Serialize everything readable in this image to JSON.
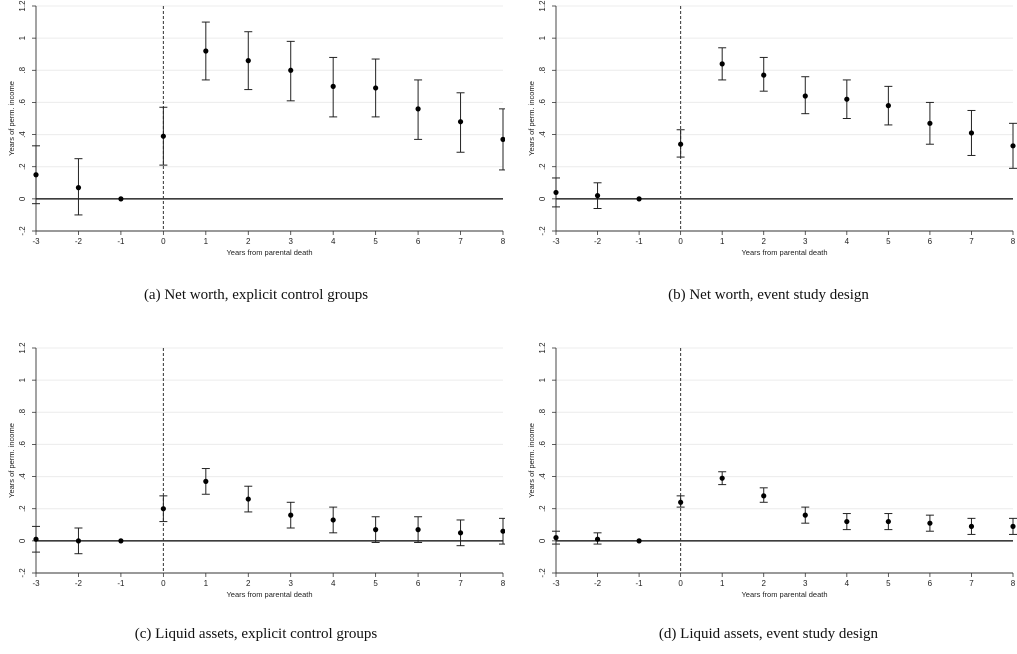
{
  "chart_data": [
    {
      "type": "scatter",
      "caption": "(a) Net worth, explicit control groups",
      "xlabel": "Years from parental death",
      "ylabel": "Years of perm. income",
      "xlim": [
        -3,
        8
      ],
      "ylim": [
        -0.2,
        1.2
      ],
      "xticks": [
        "-3",
        "-2",
        "-1",
        "0",
        "1",
        "2",
        "3",
        "4",
        "5",
        "6",
        "7",
        "8"
      ],
      "yticks": [
        "-.2",
        "0",
        ".2",
        ".4",
        ".6",
        ".8",
        "1",
        "1.2"
      ],
      "x": [
        -3,
        -2,
        -1,
        0,
        1,
        2,
        3,
        4,
        5,
        6,
        7,
        8
      ],
      "y": [
        0.15,
        0.07,
        0.0,
        0.39,
        0.92,
        0.86,
        0.8,
        0.7,
        0.69,
        0.56,
        0.48,
        0.37
      ],
      "ci_low": [
        -0.03,
        -0.1,
        0.0,
        0.21,
        0.74,
        0.68,
        0.61,
        0.51,
        0.51,
        0.37,
        0.29,
        0.18
      ],
      "ci_high": [
        0.33,
        0.25,
        0.0,
        0.57,
        1.1,
        1.04,
        0.98,
        0.88,
        0.87,
        0.74,
        0.66,
        0.56
      ],
      "event_line_x": 0,
      "grid": true
    },
    {
      "type": "scatter",
      "caption": "(b) Net worth, event study design",
      "xlabel": "Years from parental death",
      "ylabel": "Years of perm. income",
      "xlim": [
        -3,
        8
      ],
      "ylim": [
        -0.2,
        1.2
      ],
      "xticks": [
        "-3",
        "-2",
        "-1",
        "0",
        "1",
        "2",
        "3",
        "4",
        "5",
        "6",
        "7",
        "8"
      ],
      "yticks": [
        "-.2",
        "0",
        ".2",
        ".4",
        ".6",
        ".8",
        "1",
        "1.2"
      ],
      "x": [
        -3,
        -2,
        -1,
        0,
        1,
        2,
        3,
        4,
        5,
        6,
        7,
        8
      ],
      "y": [
        0.04,
        0.02,
        0.0,
        0.34,
        0.84,
        0.77,
        0.64,
        0.62,
        0.58,
        0.47,
        0.41,
        0.33
      ],
      "ci_low": [
        -0.05,
        -0.06,
        0.0,
        0.26,
        0.74,
        0.67,
        0.53,
        0.5,
        0.46,
        0.34,
        0.27,
        0.19
      ],
      "ci_high": [
        0.13,
        0.1,
        0.0,
        0.43,
        0.94,
        0.88,
        0.76,
        0.74,
        0.7,
        0.6,
        0.55,
        0.47
      ],
      "event_line_x": 0,
      "grid": true
    },
    {
      "type": "scatter",
      "caption": "(c) Liquid assets, explicit control groups",
      "xlabel": "Years from parental death",
      "ylabel": "Years of perm. income",
      "xlim": [
        -3,
        8
      ],
      "ylim": [
        -0.2,
        1.2
      ],
      "xticks": [
        "-3",
        "-2",
        "-1",
        "0",
        "1",
        "2",
        "3",
        "4",
        "5",
        "6",
        "7",
        "8"
      ],
      "yticks": [
        "-.2",
        "0",
        ".2",
        ".4",
        ".6",
        ".8",
        "1",
        "1.2"
      ],
      "x": [
        -3,
        -2,
        -1,
        0,
        1,
        2,
        3,
        4,
        5,
        6,
        7,
        8
      ],
      "y": [
        0.01,
        0.0,
        0.0,
        0.2,
        0.37,
        0.26,
        0.16,
        0.13,
        0.07,
        0.07,
        0.05,
        0.06
      ],
      "ci_low": [
        -0.07,
        -0.08,
        0.0,
        0.12,
        0.29,
        0.18,
        0.08,
        0.05,
        -0.01,
        -0.01,
        -0.03,
        -0.02
      ],
      "ci_high": [
        0.09,
        0.08,
        0.0,
        0.28,
        0.45,
        0.34,
        0.24,
        0.21,
        0.15,
        0.15,
        0.13,
        0.14
      ],
      "event_line_x": 0,
      "grid": true
    },
    {
      "type": "scatter",
      "caption": "(d) Liquid assets, event study design",
      "xlabel": "Years from parental death",
      "ylabel": "Years of perm. income",
      "xlim": [
        -3,
        8
      ],
      "ylim": [
        -0.2,
        1.2
      ],
      "xticks": [
        "-3",
        "-2",
        "-1",
        "0",
        "1",
        "2",
        "3",
        "4",
        "5",
        "6",
        "7",
        "8"
      ],
      "yticks": [
        "-.2",
        "0",
        ".2",
        ".4",
        ".6",
        ".8",
        "1",
        "1.2"
      ],
      "x": [
        -3,
        -2,
        -1,
        0,
        1,
        2,
        3,
        4,
        5,
        6,
        7,
        8
      ],
      "y": [
        0.02,
        0.01,
        0.0,
        0.24,
        0.39,
        0.28,
        0.16,
        0.12,
        0.12,
        0.11,
        0.09,
        0.09
      ],
      "ci_low": [
        -0.02,
        -0.02,
        0.0,
        0.21,
        0.35,
        0.24,
        0.11,
        0.07,
        0.07,
        0.06,
        0.04,
        0.04
      ],
      "ci_high": [
        0.06,
        0.05,
        0.0,
        0.28,
        0.43,
        0.33,
        0.21,
        0.17,
        0.17,
        0.16,
        0.14,
        0.14
      ],
      "event_line_x": 0,
      "grid": true
    }
  ]
}
